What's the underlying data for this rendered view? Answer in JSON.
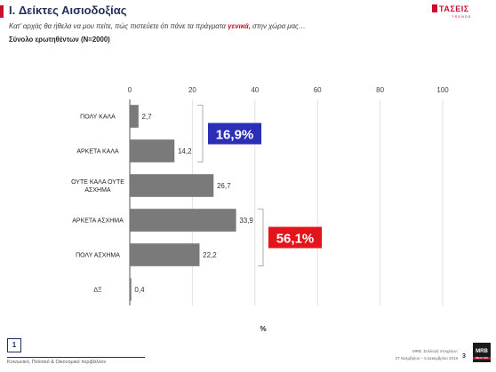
{
  "header": {
    "title": "I. Δείκτες Αισιοδοξίας",
    "subtitle_pre": "Κατ’ αρχάς θα ήθελα να μου πείτε, πώς πιστεύετε ότι πάνε τα πράγματα ",
    "subtitle_hl": "γενικά,",
    "subtitle_post": " στην χώρα μας…",
    "base": "Σύνολο ερωτηθέντων (N=2000)"
  },
  "logo": {
    "word": "ΤΑΣΕΙΣ",
    "sub": "TRENDS"
  },
  "chart_data": {
    "type": "bar",
    "orientation": "horizontal",
    "categories": [
      "ΠΟΛΥ ΚΑΛΑ",
      "ΑΡΚΕΤΑ ΚΑΛΑ",
      "ΟΥΤΕ ΚΑΛΑ ΟΥΤΕ ΑΣΧΗΜΑ",
      "ΑΡΚΕΤΑ ΑΣΧΗΜΑ",
      "ΠΟΛΥ ΑΣΧΗΜΑ",
      "ΔΞ"
    ],
    "values": [
      2.7,
      14.2,
      26.7,
      33.9,
      22.2,
      0.4
    ],
    "value_labels": [
      "2,7",
      "14,2",
      "26,7",
      "33,9",
      "22,2",
      "0,4"
    ],
    "xlim": [
      0,
      100
    ],
    "x_ticks": [
      0,
      20,
      40,
      60,
      80,
      100
    ],
    "xlabel": "%",
    "grid": true,
    "bar_color": "#7a7a7a",
    "annotations": [
      {
        "text": "16,9%",
        "group": [
          0,
          1
        ],
        "bg": "#2b2fb5",
        "fg": "#ffffff"
      },
      {
        "text": "56,1%",
        "group": [
          3,
          4
        ],
        "bg": "#e3151a",
        "fg": "#ffffff"
      }
    ]
  },
  "footer": {
    "page_box": "1",
    "section": "Κοινωνικό, Πολιτικό & Οικονομικό περιβάλλον",
    "right_line1": "MRB, Συλλογή στοιχείων:",
    "right_line2": "27 Νοεμβρίου – 5 Δεκεμβρίου 2019",
    "page_number": "3",
    "mrb": "MRB",
    "mrb_sub": "RELIA YOU"
  }
}
